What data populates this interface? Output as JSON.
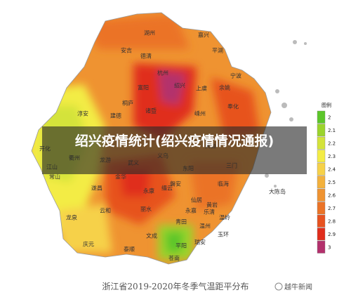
{
  "overlay_title": "绍兴疫情统计(绍兴疫情情况通报)",
  "map": {
    "caption": "浙江省2019-2020年冬季气温距平分布",
    "places": [
      "湖州",
      "安吉",
      "德清",
      "嘉兴",
      "平湖",
      "杭州",
      "富阳",
      "绍兴",
      "上虞",
      "余姚",
      "宁波",
      "桐庐",
      "诸暨",
      "嵊州",
      "奉化",
      "淳安",
      "建德",
      "开化",
      "常山",
      "龙游",
      "金华",
      "义乌",
      "东阳",
      "磐安",
      "天台",
      "三门",
      "临海",
      "武义",
      "永康",
      "仙居",
      "缙云",
      "丽水",
      "青田",
      "永嘉",
      "温州",
      "瑞安",
      "文成",
      "平阳",
      "苍南",
      "泰顺",
      "庆元",
      "龙泉",
      "云和",
      "遂昌",
      "黄岩",
      "温岭",
      "玉环",
      "乐清",
      "大陈岛",
      "江山",
      "衢州"
    ],
    "legend": {
      "title": "图例",
      "items": [
        {
          "label": 2,
          "color": "#5cc62a"
        },
        {
          "label": 2.1,
          "color": "#9bd42c"
        },
        {
          "label": 2.2,
          "color": "#d4e33a"
        },
        {
          "label": 2.3,
          "color": "#f3ec45"
        },
        {
          "label": 2.4,
          "color": "#f6d148"
        },
        {
          "label": 2.5,
          "color": "#f3b13c"
        },
        {
          "label": 2.6,
          "color": "#ef9331"
        },
        {
          "label": 2.7,
          "color": "#eb7327"
        },
        {
          "label": 2.8,
          "color": "#e7521f"
        },
        {
          "label": 2.9,
          "color": "#e02d1c"
        },
        {
          "label": 3,
          "color": "#b3306c"
        }
      ]
    }
  },
  "watermark": "越牛新闻"
}
